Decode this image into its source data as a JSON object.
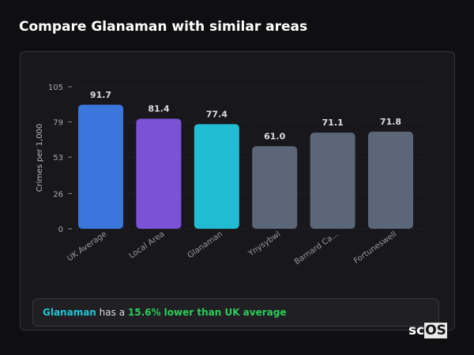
{
  "title": "Compare Glanaman with similar areas",
  "chart_data": {
    "type": "bar",
    "categories": [
      "UK Average",
      "Local Area",
      "Glanaman",
      "Ynysybwl",
      "Barnard Ca...",
      "Fortuneswell"
    ],
    "values": [
      91.7,
      81.4,
      77.4,
      61.0,
      71.1,
      71.8
    ],
    "data_labels": [
      "91.7",
      "81.4",
      "77.4",
      "61.0",
      "71.1",
      "71.8"
    ],
    "colors": [
      "#3a76dc",
      "#7b52d6",
      "#22bcd2",
      "#5b6678",
      "#5b6678",
      "#5b6678"
    ],
    "ylabel": "Crimes per 1,000",
    "yticks": [
      "0",
      "26",
      "53",
      "79",
      "105"
    ],
    "ylim": [
      0,
      105
    ],
    "grid": true
  },
  "footer": {
    "area": "Glanaman",
    "text1": " has a ",
    "highlight": "15.6% lower than UK average"
  },
  "logo": {
    "text1": "sc",
    "text2": "OS"
  }
}
